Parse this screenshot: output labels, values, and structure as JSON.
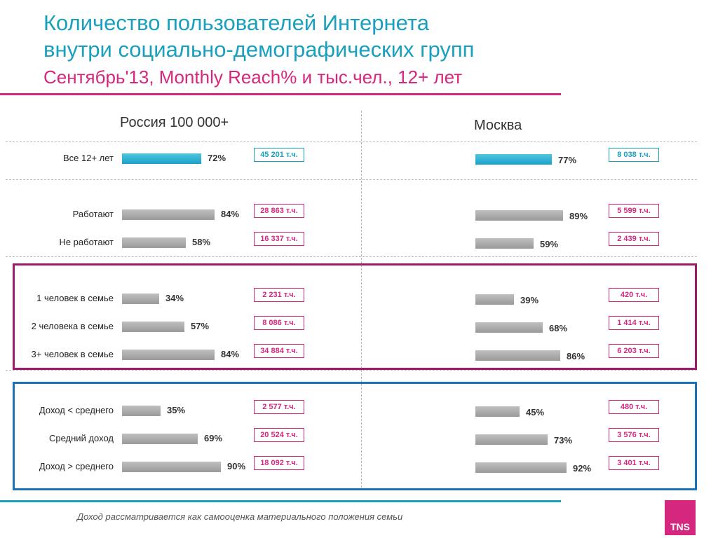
{
  "header": {
    "title_line1": "Количество пользователей Интернета",
    "title_line2": "внутри социально-демографических групп",
    "subtitle": "Сентябрь'13, Monthly Reach% и тыс.чел., 12+ лет"
  },
  "footer": {
    "note": "Доход рассматривается как самооценка материального положения семьи",
    "logo": "TNS"
  },
  "colors": {
    "accent_blue": "#1aa0bf",
    "accent_pink": "#d6277e",
    "frame_purple": "#9b1b6a",
    "frame_blue": "#1a72b8",
    "bar_gray": "#a8a8a8"
  },
  "chart_data": {
    "type": "bar",
    "orientation": "horizontal",
    "xlim": [
      0,
      100
    ],
    "categories": [
      "Все 12+ лет",
      "Работают",
      "Не работают",
      "1 человек в семье",
      "2 человека в семье",
      "3+ человек в семье",
      "Доход < среднего",
      "Средний доход",
      "Доход > среднего"
    ],
    "series": [
      {
        "name": "Россия 100 000+",
        "values": [
          72,
          84,
          58,
          34,
          57,
          84,
          35,
          69,
          90
        ],
        "value_labels": [
          "72%",
          "84%",
          "58%",
          "34%",
          "57%",
          "84%",
          "35%",
          "69%",
          "90%"
        ],
        "counts": [
          "45 201 т.ч.",
          "28 863 т.ч.",
          "16 337 т.ч.",
          "2 231 т.ч.",
          "8 086 т.ч.",
          "34 884 т.ч.",
          "2 577 т.ч.",
          "20 524 т.ч.",
          "18 092 т.ч."
        ]
      },
      {
        "name": "Москва",
        "values": [
          77,
          89,
          59,
          39,
          68,
          86,
          45,
          73,
          92
        ],
        "value_labels": [
          "77%",
          "89%",
          "59%",
          "39%",
          "68%",
          "86%",
          "45%",
          "73%",
          "92%"
        ],
        "counts": [
          "8 038 т.ч.",
          "5 599 т.ч.",
          "2 439 т.ч.",
          "420 т.ч.",
          "1 414 т.ч.",
          "6 203 т.ч.",
          "480 т.ч.",
          "3 576 т.ч.",
          "3 401 т.ч."
        ]
      }
    ]
  }
}
